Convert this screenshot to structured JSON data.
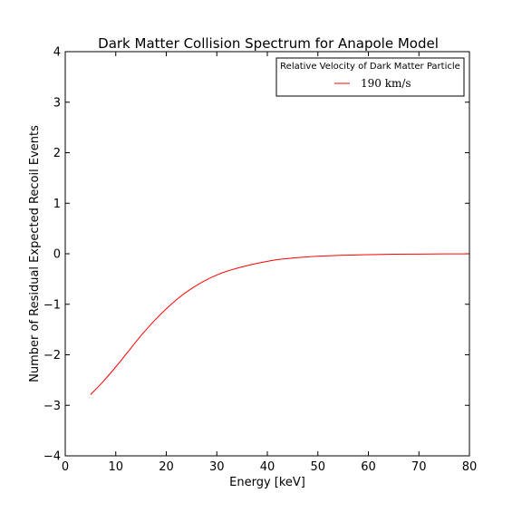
{
  "chart_data": {
    "type": "line",
    "title": "Dark Matter Collision Spectrum for Anapole Model",
    "xlabel": "Energy [keV]",
    "ylabel": "Number of Residual Expected Recoil Events",
    "xlim": [
      0,
      80
    ],
    "ylim": [
      -4,
      4
    ],
    "xticks": [
      0,
      10,
      20,
      30,
      40,
      50,
      60,
      70,
      80
    ],
    "xtick_labels": [
      "0",
      "10",
      "20",
      "30",
      "40",
      "50",
      "60",
      "70",
      "80"
    ],
    "yticks": [
      -4,
      -3,
      -2,
      -1,
      0,
      1,
      2,
      3,
      4
    ],
    "ytick_labels": [
      "−4",
      "−3",
      "−2",
      "−1",
      "0",
      "1",
      "2",
      "3",
      "4"
    ],
    "grid": false,
    "legend": {
      "title": "Relative Velocity of Dark Matter Particle",
      "placement": "top-right"
    },
    "series": [
      {
        "name": "190  km/s",
        "color": "#ff0000",
        "x": [
          5,
          7.5,
          10,
          12.5,
          15,
          17.5,
          20,
          22.5,
          25,
          27.5,
          30,
          32.5,
          35,
          37.5,
          40,
          42.5,
          45,
          47.5,
          50,
          55,
          60,
          65,
          70,
          75,
          80
        ],
        "y": [
          -2.79,
          -2.53,
          -2.24,
          -1.93,
          -1.62,
          -1.34,
          -1.09,
          -0.87,
          -0.69,
          -0.54,
          -0.42,
          -0.33,
          -0.26,
          -0.2,
          -0.15,
          -0.11,
          -0.085,
          -0.065,
          -0.05,
          -0.03,
          -0.018,
          -0.01,
          -0.006,
          -0.003,
          -0.002
        ]
      }
    ]
  }
}
